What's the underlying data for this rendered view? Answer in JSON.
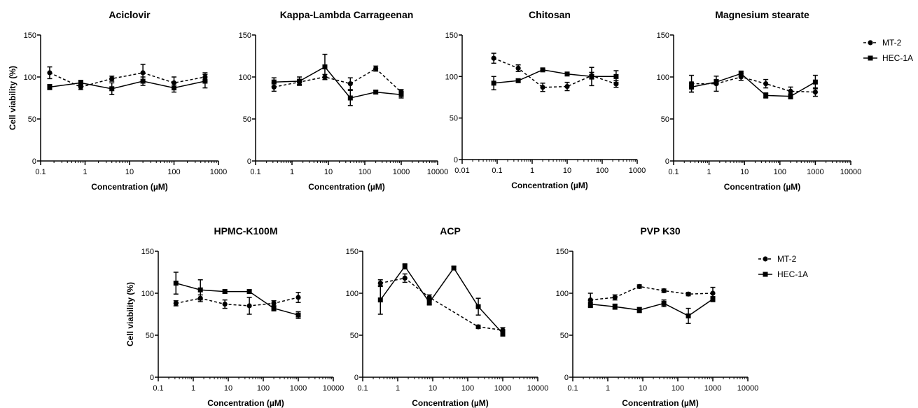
{
  "figure": {
    "legend_top": {
      "series": [
        "MT-2",
        "HEC-1A"
      ]
    },
    "legend_bottom": {
      "series": [
        "MT-2",
        "HEC-1A"
      ]
    }
  },
  "chart_data": [
    {
      "type": "line",
      "title": "Aciclovir",
      "xlabel": "Concentration (µM)",
      "ylabel": "Cell viability (%)",
      "xscale": "log",
      "xlim": [
        0.1,
        1000
      ],
      "ylim": [
        0,
        150
      ],
      "xticks": [
        "0.1",
        "1",
        "10",
        "100",
        "1000"
      ],
      "yticks": [
        "0",
        "50",
        "100",
        "150"
      ],
      "series": [
        {
          "name": "MT-2",
          "x": [
            0.16,
            0.8,
            4,
            20,
            100,
            500
          ],
          "y": [
            105,
            88,
            98,
            105,
            93,
            100
          ],
          "err": [
            7,
            3,
            3,
            10,
            7,
            5
          ]
        },
        {
          "name": "HEC-1A",
          "x": [
            0.16,
            0.8,
            4,
            20,
            100,
            500
          ],
          "y": [
            88,
            93,
            86,
            95,
            87,
            95
          ],
          "err": [
            3,
            3,
            7,
            5,
            5,
            8
          ]
        }
      ]
    },
    {
      "type": "line",
      "title": "Kappa-Lambda Carrageenan",
      "xlabel": "Concentration (µM)",
      "ylabel": "",
      "xscale": "log",
      "xlim": [
        0.1,
        10000
      ],
      "ylim": [
        0,
        150
      ],
      "xticks": [
        "0.1",
        "1",
        "10",
        "100",
        "1000",
        "10000"
      ],
      "yticks": [
        "0",
        "50",
        "100",
        "150"
      ],
      "series": [
        {
          "name": "MT-2",
          "x": [
            0.32,
            1.6,
            8,
            40,
            200,
            1000
          ],
          "y": [
            88,
            94,
            100,
            92,
            110,
            82
          ],
          "err": [
            5,
            3,
            3,
            7,
            3,
            3
          ]
        },
        {
          "name": "HEC-1A",
          "x": [
            0.32,
            1.6,
            8,
            40,
            200,
            1000
          ],
          "y": [
            94,
            95,
            112,
            75,
            82,
            79
          ],
          "err": [
            5,
            5,
            15,
            9,
            2,
            4
          ]
        }
      ]
    },
    {
      "type": "line",
      "title": "Chitosan",
      "xlabel": "Concentration (µM)",
      "ylabel": "",
      "xscale": "log",
      "xlim": [
        0.01,
        1000
      ],
      "ylim": [
        0,
        150
      ],
      "xticks": [
        "0.01",
        "0.1",
        "1",
        "10",
        "100",
        "1000"
      ],
      "yticks": [
        "0",
        "50",
        "100",
        "150"
      ],
      "series": [
        {
          "name": "MT-2",
          "x": [
            0.08,
            0.4,
            2,
            10,
            50,
            250
          ],
          "y": [
            122,
            110,
            87,
            88,
            101,
            91
          ],
          "err": [
            6,
            4,
            5,
            5,
            4,
            4
          ]
        },
        {
          "name": "HEC-1A",
          "x": [
            0.08,
            0.4,
            2,
            10,
            50,
            250
          ],
          "y": [
            92,
            95,
            108,
            103,
            100,
            100
          ],
          "err": [
            8,
            2,
            2,
            2,
            11,
            7
          ]
        }
      ]
    },
    {
      "type": "line",
      "title": "Magnesium stearate",
      "xlabel": "Concentration (µM)",
      "ylabel": "",
      "xscale": "log",
      "xlim": [
        0.1,
        10000
      ],
      "ylim": [
        0,
        150
      ],
      "xticks": [
        "0.1",
        "1",
        "10",
        "100",
        "1000",
        "10000"
      ],
      "yticks": [
        "0",
        "50",
        "100",
        "150"
      ],
      "series": [
        {
          "name": "MT-2",
          "x": [
            0.32,
            1.6,
            8,
            40,
            200,
            1000
          ],
          "y": [
            92,
            92,
            100,
            92,
            83,
            82
          ],
          "err": [
            10,
            9,
            4,
            5,
            5,
            5
          ]
        },
        {
          "name": "HEC-1A",
          "x": [
            0.32,
            1.6,
            8,
            40,
            200,
            1000
          ],
          "y": [
            88,
            94,
            104,
            78,
            77,
            94
          ],
          "err": [
            6,
            3,
            3,
            3,
            3,
            8
          ]
        }
      ]
    },
    {
      "type": "line",
      "title": "HPMC-K100M",
      "xlabel": "Concentration (µM)",
      "ylabel": "Cell viability (%)",
      "xscale": "log",
      "xlim": [
        0.1,
        10000
      ],
      "ylim": [
        0,
        150
      ],
      "xticks": [
        "0.1",
        "1",
        "10",
        "100",
        "1000",
        "10000"
      ],
      "yticks": [
        "0",
        "50",
        "100",
        "150"
      ],
      "series": [
        {
          "name": "MT-2",
          "x": [
            0.32,
            1.6,
            8,
            40,
            200,
            1000
          ],
          "y": [
            88,
            94,
            87,
            85,
            88,
            95
          ],
          "err": [
            3,
            4,
            5,
            10,
            3,
            6
          ]
        },
        {
          "name": "HEC-1A",
          "x": [
            0.32,
            1.6,
            8,
            40,
            200,
            1000
          ],
          "y": [
            112,
            104,
            102,
            102,
            82,
            74
          ],
          "err": [
            13,
            12,
            2,
            2,
            3,
            4
          ]
        }
      ]
    },
    {
      "type": "line",
      "title": "ACP",
      "xlabel": "Concentration (µM)",
      "ylabel": "",
      "xscale": "log",
      "xlim": [
        0.1,
        10000
      ],
      "ylim": [
        0,
        150
      ],
      "xticks": [
        "0.1",
        "1",
        "10",
        "100",
        "1000",
        "10000"
      ],
      "yticks": [
        "0",
        "50",
        "100",
        "150"
      ],
      "series": [
        {
          "name": "MT-2",
          "x": [
            0.32,
            1.6,
            8,
            200,
            1000
          ],
          "y": [
            112,
            118,
            95,
            60,
            56
          ],
          "err": [
            4,
            5,
            3,
            2,
            3
          ]
        },
        {
          "name": "HEC-1A",
          "x": [
            0.32,
            1.6,
            8,
            40,
            200,
            1000
          ],
          "y": [
            92,
            132,
            89,
            130,
            84,
            52
          ],
          "err": [
            17,
            3,
            3,
            2,
            10,
            3
          ]
        }
      ]
    },
    {
      "type": "line",
      "title": "PVP K30",
      "xlabel": "Concentration (µM)",
      "ylabel": "",
      "xscale": "log",
      "xlim": [
        0.1,
        10000
      ],
      "ylim": [
        0,
        150
      ],
      "xticks": [
        "0.1",
        "1",
        "10",
        "100",
        "1000",
        "10000"
      ],
      "yticks": [
        "0",
        "50",
        "100",
        "150"
      ],
      "series": [
        {
          "name": "MT-2",
          "x": [
            0.32,
            1.6,
            8,
            40,
            200,
            1000
          ],
          "y": [
            92,
            95,
            108,
            103,
            99,
            100
          ],
          "err": [
            8,
            3,
            2,
            2,
            2,
            7
          ]
        },
        {
          "name": "HEC-1A",
          "x": [
            0.32,
            1.6,
            8,
            40,
            200,
            1000
          ],
          "y": [
            87,
            84,
            80,
            88,
            73,
            93
          ],
          "err": [
            4,
            3,
            3,
            4,
            9,
            3
          ]
        }
      ]
    }
  ]
}
